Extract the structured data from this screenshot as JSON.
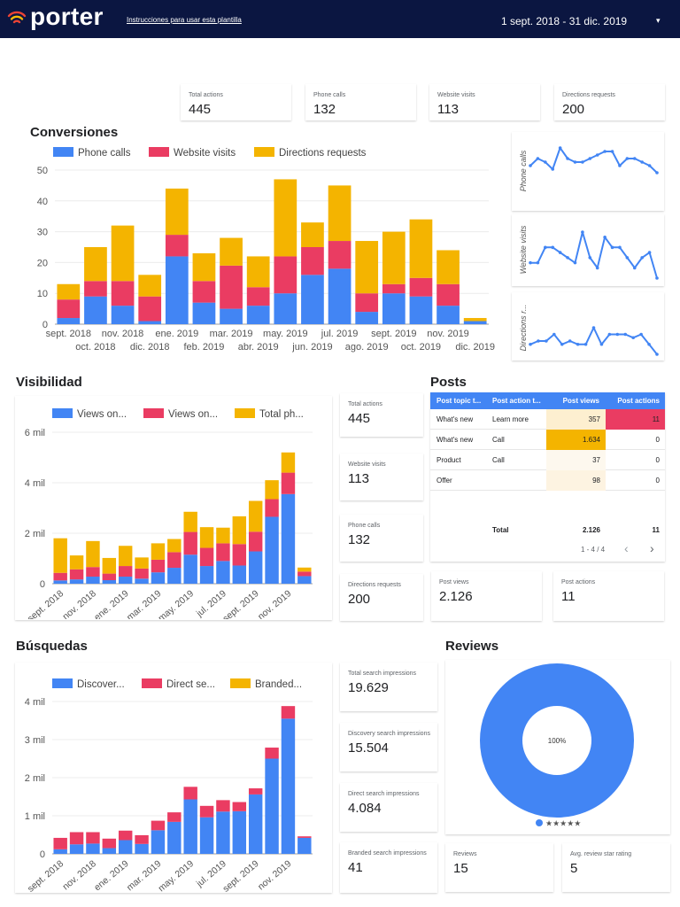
{
  "header": {
    "brand": "porter",
    "instructions": "Instrucciones para usar esta plantilla",
    "date_range": "1 sept. 2018 - 31 dic. 2019",
    "caret": "▾"
  },
  "colors": {
    "blue": "#4285f4",
    "red": "#ea3c62",
    "yellow": "#f4b400",
    "header_bg": "#0b1641"
  },
  "top_kpis": [
    {
      "label": "Total actions",
      "value": "445"
    },
    {
      "label": "Phone calls",
      "value": "132"
    },
    {
      "label": "Website visits",
      "value": "113"
    },
    {
      "label": "Directions requests",
      "value": "200"
    }
  ],
  "conversiones": {
    "title": "Conversiones",
    "legend": [
      "Phone calls",
      "Website visits",
      "Directions requests"
    ],
    "spark_labels": [
      "Phone calls",
      "Website visits",
      "Directions r..."
    ]
  },
  "visibilidad": {
    "title": "Visibilidad",
    "legend": [
      "Views on...",
      "Views on...",
      "Total ph..."
    ],
    "kpis": [
      {
        "label": "Total actions",
        "value": "445"
      },
      {
        "label": "Website visits",
        "value": "113"
      },
      {
        "label": "Phone calls",
        "value": "132"
      },
      {
        "label": "Directions requests",
        "value": "200"
      }
    ]
  },
  "posts": {
    "title": "Posts",
    "columns": [
      "Post topic t...",
      "Post action t...",
      "Post views",
      "Post actions"
    ],
    "rows": [
      {
        "topic": "What's new",
        "action": "Learn more",
        "views": "357",
        "actions": "11"
      },
      {
        "topic": "What's new",
        "action": "Call",
        "views": "1.634",
        "actions": "0"
      },
      {
        "topic": "Product",
        "action": "Call",
        "views": "37",
        "actions": "0"
      },
      {
        "topic": "Offer",
        "action": "",
        "views": "98",
        "actions": "0"
      }
    ],
    "total_label": "Total",
    "total_views": "2.126",
    "total_actions": "11",
    "pagination": "1 - 4 / 4",
    "prev": "‹",
    "next": "›",
    "kpis": [
      {
        "label": "Post views",
        "value": "2.126"
      },
      {
        "label": "Post actions",
        "value": "11"
      }
    ]
  },
  "busquedas": {
    "title": "Búsquedas",
    "legend": [
      "Discover...",
      "Direct se...",
      "Branded..."
    ],
    "kpis": [
      {
        "label": "Total search impressions",
        "value": "19.629"
      },
      {
        "label": "Discovery search impressions",
        "value": "15.504"
      },
      {
        "label": "Direct search impressions",
        "value": "4.084"
      },
      {
        "label": "Branded search impressions",
        "value": "41"
      }
    ]
  },
  "reviews": {
    "title": "Reviews",
    "donut_label": "100%",
    "legend_stars": "★★★★★",
    "kpis": [
      {
        "label": "Reviews",
        "value": "15"
      },
      {
        "label": "Avg. review star rating",
        "value": "5"
      }
    ]
  },
  "chart_data": [
    {
      "id": "conversiones",
      "type": "bar",
      "stacked": true,
      "categories": [
        "sept. 2018",
        "oct. 2018",
        "nov. 2018",
        "dic. 2018",
        "ene. 2019",
        "feb. 2019",
        "mar. 2019",
        "abr. 2019",
        "may. 2019",
        "jun. 2019",
        "jul. 2019",
        "ago. 2019",
        "sept. 2019",
        "oct. 2019",
        "nov. 2019",
        "dic. 2019"
      ],
      "series": [
        {
          "name": "Phone calls",
          "values": [
            2,
            9,
            6,
            1,
            22,
            7,
            5,
            6,
            10,
            16,
            18,
            4,
            10,
            9,
            6,
            1
          ]
        },
        {
          "name": "Website visits",
          "values": [
            6,
            5,
            8,
            8,
            7,
            7,
            14,
            6,
            12,
            9,
            9,
            6,
            3,
            6,
            7,
            0
          ]
        },
        {
          "name": "Directions requests",
          "values": [
            5,
            11,
            18,
            7,
            15,
            9,
            9,
            10,
            25,
            8,
            18,
            17,
            17,
            19,
            11,
            1
          ]
        }
      ],
      "yticks": [
        "0",
        "10",
        "20",
        "30",
        "40",
        "50"
      ],
      "ylim": [
        0,
        50
      ]
    },
    {
      "id": "sparklines",
      "type": "line",
      "series": [
        {
          "name": "Phone calls",
          "values": [
            5,
            7,
            6,
            4,
            10,
            7,
            6,
            6,
            7,
            8,
            9,
            9,
            5,
            7,
            7,
            6,
            5,
            3
          ]
        },
        {
          "name": "Website visits",
          "values": [
            3,
            3,
            6,
            6,
            5,
            4,
            3,
            9,
            4,
            2,
            8,
            6,
            6,
            4,
            2,
            4,
            5,
            0
          ]
        },
        {
          "name": "Directions r...",
          "values": [
            4,
            5,
            5,
            7,
            4,
            5,
            4,
            4,
            9,
            4,
            7,
            7,
            7,
            6,
            7,
            4,
            1
          ]
        }
      ]
    },
    {
      "id": "visibilidad",
      "type": "bar",
      "stacked": true,
      "categories": [
        "sept. 2018",
        "oct. 2018",
        "nov. 2018",
        "dic. 2018",
        "ene. 2019",
        "feb. 2019",
        "mar. 2019",
        "abr. 2019",
        "may. 2019",
        "jun. 2019",
        "jul. 2019",
        "ago. 2019",
        "sept. 2019",
        "oct. 2019",
        "nov. 2019",
        "dic. 2019"
      ],
      "xticks": [
        "sept. 2018",
        "nov. 2018",
        "ene. 2019",
        "mar. 2019",
        "may. 2019",
        "jul. 2019",
        "sept. 2019",
        "nov. 2019"
      ],
      "series": [
        {
          "name": "Views on...",
          "values": [
            130,
            170,
            280,
            140,
            280,
            200,
            450,
            630,
            1150,
            700,
            900,
            720,
            1280,
            2650,
            3550,
            300
          ]
        },
        {
          "name": "Views on...",
          "values": [
            300,
            400,
            380,
            260,
            420,
            400,
            500,
            620,
            900,
            720,
            700,
            850,
            780,
            700,
            850,
            180
          ]
        },
        {
          "name": "Total ph...",
          "values": [
            1370,
            550,
            1030,
            620,
            800,
            440,
            650,
            520,
            800,
            820,
            620,
            1100,
            1220,
            750,
            800,
            160
          ]
        }
      ],
      "yticks": [
        "0",
        "2 mil",
        "4 mil",
        "6 mil"
      ],
      "ylim": [
        0,
        6000
      ]
    },
    {
      "id": "busquedas",
      "type": "bar",
      "stacked": true,
      "categories": [
        "sept. 2018",
        "oct. 2018",
        "nov. 2018",
        "dic. 2018",
        "ene. 2019",
        "feb. 2019",
        "mar. 2019",
        "abr. 2019",
        "may. 2019",
        "jun. 2019",
        "jul. 2019",
        "ago. 2019",
        "sept. 2019",
        "oct. 2019",
        "nov. 2019",
        "dic. 2019"
      ],
      "xticks": [
        "sept. 2018",
        "nov. 2018",
        "ene. 2019",
        "mar. 2019",
        "may. 2019",
        "jul. 2019",
        "sept. 2019",
        "nov. 2019"
      ],
      "series": [
        {
          "name": "Discover...",
          "values": [
            120,
            250,
            270,
            150,
            360,
            260,
            620,
            840,
            1430,
            960,
            1110,
            1120,
            1560,
            2500,
            3550,
            420
          ]
        },
        {
          "name": "Direct se...",
          "values": [
            300,
            320,
            300,
            250,
            250,
            230,
            250,
            250,
            330,
            300,
            300,
            240,
            160,
            290,
            330,
            40
          ]
        },
        {
          "name": "Branded...",
          "values": [
            0,
            0,
            0,
            0,
            0,
            0,
            0,
            0,
            0,
            0,
            0,
            0,
            0,
            0,
            0,
            0
          ]
        }
      ],
      "yticks": [
        "0",
        "1 mil",
        "2 mil",
        "3 mil",
        "4 mil"
      ],
      "ylim": [
        0,
        4000
      ]
    },
    {
      "id": "reviews",
      "type": "pie",
      "categories": [
        "★★★★★"
      ],
      "values": [
        100
      ],
      "label": "100%"
    }
  ]
}
